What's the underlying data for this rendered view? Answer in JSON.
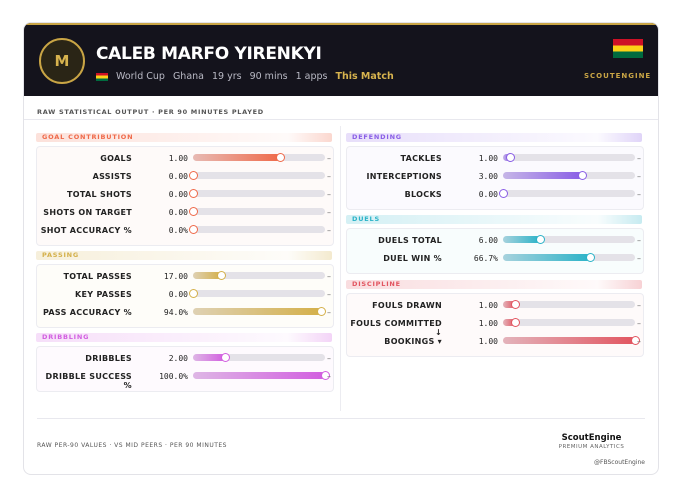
{
  "header": {
    "initial": "M",
    "name": "CALEB MARFO YIRENKYI",
    "meta": [
      "World Cup",
      "Ghana",
      "19 yrs",
      "90 mins",
      "1 apps"
    ],
    "highlight": "This Match",
    "brand": "SCOUTENGINE"
  },
  "subtitle": "RAW STATISTICAL OUTPUT · PER 90 MINUTES PLAYED",
  "sections": [
    {
      "title": "GOAL CONTRIBUTION",
      "color": "#ef6a4a",
      "rows": [
        {
          "label": "GOALS",
          "value": "1.00",
          "fill": 66,
          "trend": "–"
        },
        {
          "label": "ASSISTS",
          "value": "0.00",
          "fill": 0,
          "trend": "–"
        },
        {
          "label": "TOTAL SHOTS",
          "value": "0.00",
          "fill": 0,
          "trend": "–"
        },
        {
          "label": "SHOTS ON TARGET",
          "value": "0.00",
          "fill": 0,
          "trend": "–"
        },
        {
          "label": "SHOT ACCURACY %",
          "value": "0.0%",
          "fill": 0,
          "trend": "–"
        }
      ]
    },
    {
      "title": "PASSING",
      "color": "#d4b04a",
      "rows": [
        {
          "label": "TOTAL PASSES",
          "value": "17.00",
          "fill": 21,
          "trend": "–"
        },
        {
          "label": "KEY PASSES",
          "value": "0.00",
          "fill": 0,
          "trend": "–"
        },
        {
          "label": "PASS ACCURACY %",
          "value": "94.0%",
          "fill": 97,
          "trend": "–"
        }
      ]
    },
    {
      "title": "DRIBBLING",
      "color": "#d25ee0",
      "rows": [
        {
          "label": "DRIBBLES",
          "value": "2.00",
          "fill": 24,
          "trend": "–"
        },
        {
          "label": "DRIBBLE SUCCESS %",
          "value": "100.0%",
          "fill": 100,
          "trend": "–"
        }
      ]
    },
    {
      "title": "DEFENDING",
      "color": "#8a5ee6",
      "rows": [
        {
          "label": "TACKLES",
          "value": "1.00",
          "fill": 5,
          "trend": "–"
        },
        {
          "label": "INTERCEPTIONS",
          "value": "3.00",
          "fill": 60,
          "trend": "–"
        },
        {
          "label": "BLOCKS",
          "value": "0.00",
          "fill": 0,
          "trend": "–"
        }
      ]
    },
    {
      "title": "DUELS",
      "color": "#2bb3c8",
      "rows": [
        {
          "label": "DUELS TOTAL",
          "value": "6.00",
          "fill": 28,
          "trend": "–"
        },
        {
          "label": "DUEL WIN %",
          "value": "66.7%",
          "fill": 66,
          "trend": "–"
        }
      ]
    },
    {
      "title": "DISCIPLINE",
      "color": "#e25560",
      "rows": [
        {
          "label": "FOULS DRAWN",
          "value": "1.00",
          "fill": 9,
          "trend": "–"
        },
        {
          "label": "FOULS COMMITTED ↓",
          "value": "1.00",
          "fill": 9,
          "trend": "–"
        },
        {
          "label": "BOOKINGS ▾",
          "value": "1.00",
          "fill": 100,
          "trend": "–"
        }
      ]
    }
  ],
  "footer": {
    "note": "RAW PER-90 VALUES · VS MID PEERS · PER 90 MINUTES",
    "brand": "ScoutEngine",
    "tagline": "PREMIUM ANALYTICS",
    "handle": "@FBScoutEngine"
  }
}
